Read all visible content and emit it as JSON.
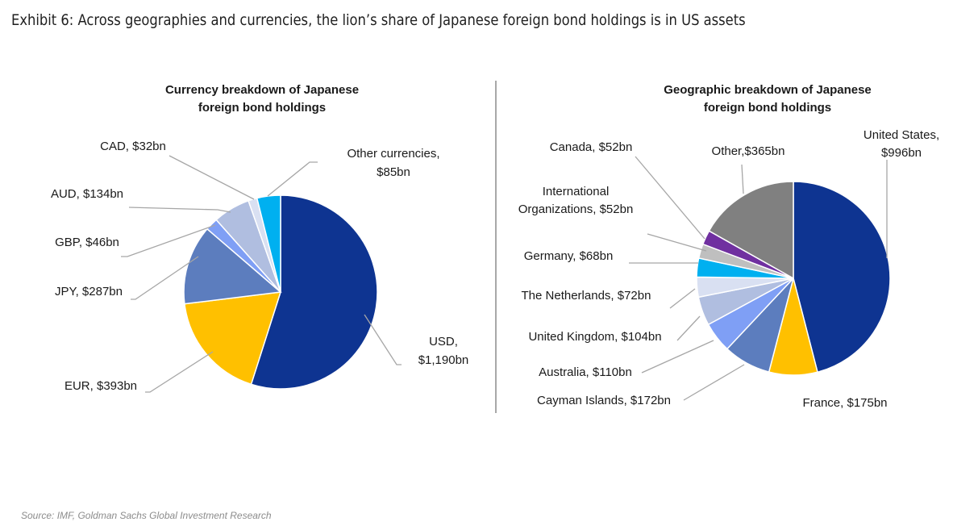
{
  "page": {
    "title": "Exhibit 6: Across geographies and currencies, the lion’s share of Japanese foreign bond holdings is in US assets",
    "source": "Source: IMF, Goldman Sachs Global Investment Research"
  },
  "chart_data": [
    {
      "type": "pie",
      "title": [
        "Currency breakdown of Japanese",
        "foreign bond holdings"
      ],
      "unit": "$bn",
      "slices": [
        {
          "label": [
            "USD,",
            "$1,190bn"
          ],
          "value": 1190,
          "color": "#0E3491"
        },
        {
          "label": [
            "EUR, $393bn"
          ],
          "value": 393,
          "color": "#FFC000"
        },
        {
          "label": [
            "JPY, $287bn"
          ],
          "value": 287,
          "color": "#5C7DBE"
        },
        {
          "label": [
            "GBP, $46bn"
          ],
          "value": 46,
          "color": "#7F9FF5"
        },
        {
          "label": [
            "AUD, $134bn"
          ],
          "value": 134,
          "color": "#B0BEE0"
        },
        {
          "label": [
            "CAD, $32bn"
          ],
          "value": 32,
          "color": "#D9E0F2"
        },
        {
          "label": [
            "Other currencies,",
            "$85bn"
          ],
          "value": 85,
          "color": "#00B0F0"
        }
      ]
    },
    {
      "type": "pie",
      "title": [
        "Geographic breakdown of Japanese",
        "foreign bond holdings"
      ],
      "unit": "$bn",
      "slices": [
        {
          "label": [
            "United States,",
            "$996bn"
          ],
          "value": 996,
          "color": "#0E3491"
        },
        {
          "label": [
            "France, $175bn"
          ],
          "value": 175,
          "color": "#FFC000"
        },
        {
          "label": [
            "Cayman Islands, $172bn"
          ],
          "value": 172,
          "color": "#5C7DBE"
        },
        {
          "label": [
            "Australia, $110bn"
          ],
          "value": 110,
          "color": "#7F9FF5"
        },
        {
          "label": [
            "United Kingdom, $104bn"
          ],
          "value": 104,
          "color": "#B0BEE0"
        },
        {
          "label": [
            "The Netherlands, $72bn"
          ],
          "value": 72,
          "color": "#D9E0F2"
        },
        {
          "label": [
            "Germany, $68bn"
          ],
          "value": 68,
          "color": "#00B0F0"
        },
        {
          "label": [
            "International",
            "Organizations, $52bn"
          ],
          "value": 52,
          "color": "#BFBFBF"
        },
        {
          "label": [
            "Canada, $52bn"
          ],
          "value": 52,
          "color": "#7030A0"
        },
        {
          "label": [
            "Other,$365bn"
          ],
          "value": 365,
          "color": "#808080"
        }
      ]
    }
  ]
}
